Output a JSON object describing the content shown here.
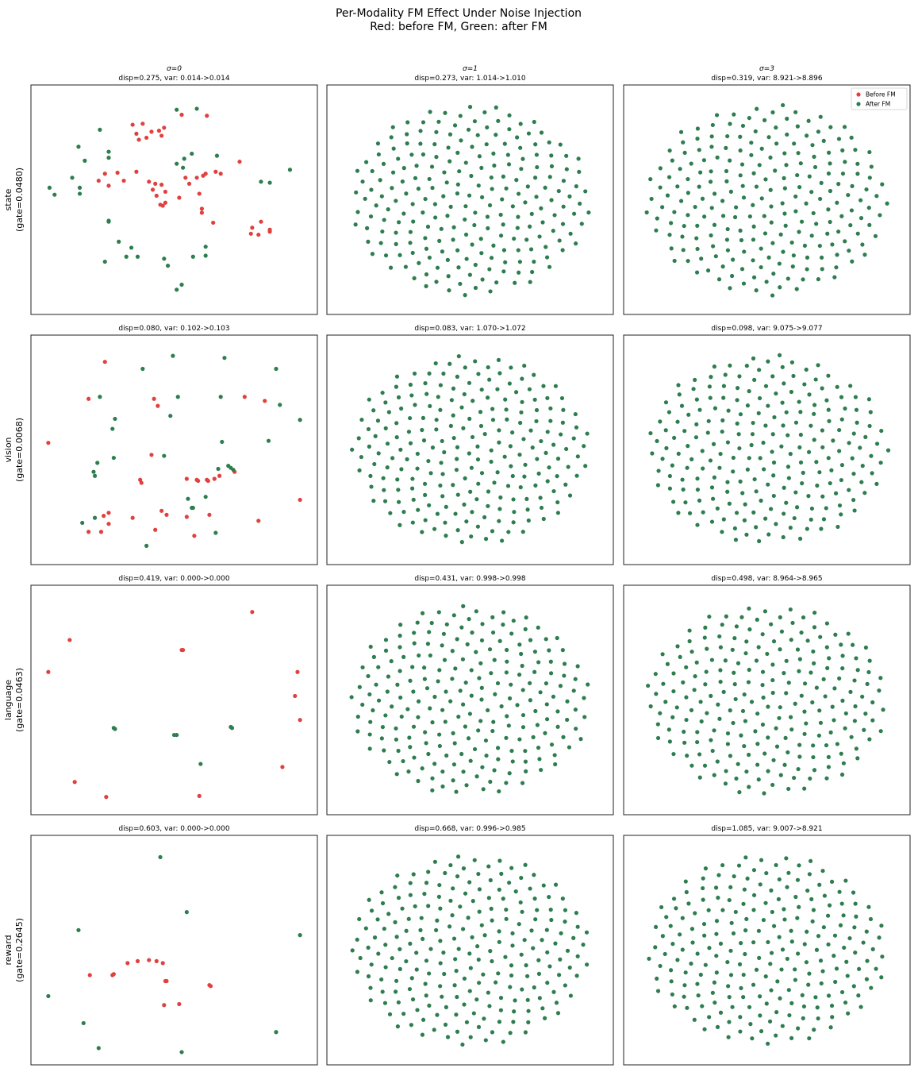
{
  "figure": {
    "title_line1": "Per-Modality FM Effect Under Noise Injection",
    "title_line2": "Red: before FM, Green: after FM"
  },
  "colors": {
    "before": "#e0413e",
    "after": "#2e7d4f",
    "frame": "#222222"
  },
  "legend": {
    "position": "upper-right of top-right panel",
    "before_label": "Before FM",
    "after_label": "After FM"
  },
  "columns": [
    {
      "label": "σ=0"
    },
    {
      "label": "σ=1"
    },
    {
      "label": "σ=3"
    }
  ],
  "rows": [
    {
      "name": "state",
      "gate": "(gate=0.0480)"
    },
    {
      "name": "vision",
      "gate": "(gate=0.0068)"
    },
    {
      "name": "language",
      "gate": "(gate=0.0463)"
    },
    {
      "name": "reward",
      "gate": "(gate=0.2645)"
    }
  ],
  "chart_data": [
    {
      "type": "scatter",
      "row": 0,
      "col": 0,
      "xlim": [
        -1.1,
        1.1
      ],
      "ylim": [
        -1.1,
        1.1
      ],
      "subtitle": "σ=0",
      "title": "disp=0.275, var: 0.014->0.014",
      "before": [
        [
          -0.33,
          0.75
        ],
        [
          -0.25,
          0.76
        ],
        [
          -0.3,
          0.66
        ],
        [
          -0.18,
          0.68
        ],
        [
          -0.22,
          0.62
        ],
        [
          -0.12,
          0.69
        ],
        [
          -0.28,
          0.6
        ],
        [
          -0.1,
          0.64
        ],
        [
          -0.08,
          0.72
        ],
        [
          0.06,
          0.85
        ],
        [
          0.26,
          0.84
        ],
        [
          -0.3,
          0.28
        ],
        [
          -0.55,
          0.26
        ],
        [
          -0.45,
          0.27
        ],
        [
          -0.6,
          0.19
        ],
        [
          -0.52,
          0.14
        ],
        [
          -0.4,
          0.19
        ],
        [
          -0.2,
          0.18
        ],
        [
          -0.15,
          0.16
        ],
        [
          -0.17,
          0.1
        ],
        [
          -0.1,
          0.15
        ],
        [
          -0.07,
          0.08
        ],
        [
          0.04,
          0.02
        ],
        [
          0.12,
          0.16
        ],
        [
          0.2,
          0.06
        ],
        [
          0.18,
          0.22
        ],
        [
          0.25,
          0.26
        ],
        [
          0.33,
          0.28
        ],
        [
          0.37,
          0.26
        ],
        [
          0.09,
          0.22
        ],
        [
          -0.14,
          0.04
        ],
        [
          -0.11,
          -0.05
        ],
        [
          -0.07,
          -0.03
        ],
        [
          0.23,
          0.24
        ],
        [
          0.52,
          0.38
        ],
        [
          -0.09,
          -0.06
        ],
        [
          0.22,
          -0.09
        ],
        [
          0.22,
          -0.13
        ],
        [
          0.31,
          -0.23
        ],
        [
          0.62,
          -0.28
        ],
        [
          0.69,
          -0.22
        ],
        [
          0.76,
          -0.3
        ],
        [
          0.76,
          -0.32
        ],
        [
          0.61,
          -0.34
        ],
        [
          0.67,
          -0.35
        ]
      ],
      "after": [
        [
          0.02,
          0.9
        ],
        [
          0.18,
          0.91
        ],
        [
          -0.59,
          0.7
        ],
        [
          -0.76,
          0.53
        ],
        [
          -0.52,
          0.48
        ],
        [
          -0.71,
          0.39
        ],
        [
          -0.52,
          0.42
        ],
        [
          0.08,
          0.41
        ],
        [
          0.14,
          0.46
        ],
        [
          0.34,
          0.44
        ],
        [
          0.02,
          0.36
        ],
        [
          0.07,
          0.32
        ],
        [
          0.92,
          0.3
        ],
        [
          -0.81,
          0.22
        ],
        [
          -0.75,
          0.12
        ],
        [
          -0.99,
          0.12
        ],
        [
          -0.75,
          0.06
        ],
        [
          -0.95,
          0.05
        ],
        [
          0.69,
          0.18
        ],
        [
          0.76,
          0.17
        ],
        [
          -0.52,
          -0.22
        ],
        [
          -0.52,
          -0.21
        ],
        [
          -0.44,
          -0.42
        ],
        [
          -0.38,
          -0.57
        ],
        [
          -0.34,
          -0.48
        ],
        [
          -0.29,
          -0.57
        ],
        [
          -0.08,
          -0.59
        ],
        [
          -0.05,
          -0.66
        ],
        [
          0.15,
          -0.57
        ],
        [
          0.25,
          -0.56
        ],
        [
          -0.55,
          -0.62
        ],
        [
          0.06,
          -0.85
        ],
        [
          0.02,
          -0.9
        ],
        [
          0.25,
          -0.47
        ]
      ]
    },
    {
      "type": "scatter",
      "row": 0,
      "col": 1,
      "xlim": [
        -1.1,
        1.1
      ],
      "ylim": [
        -1.1,
        1.1
      ],
      "subtitle": "σ=1",
      "title": "disp=0.273, var: 1.014->1.010",
      "before": [],
      "after": [],
      "pattern": "hex-ellipse cloud"
    },
    {
      "type": "scatter",
      "row": 0,
      "col": 2,
      "xlim": [
        -1.1,
        1.1
      ],
      "ylim": [
        -1.1,
        1.1
      ],
      "subtitle": "σ=3",
      "title": "disp=0.319, var: 8.921->8.896",
      "before": [],
      "after": [],
      "pattern": "hex-ellipse cloud"
    },
    {
      "type": "scatter",
      "row": 1,
      "col": 0,
      "xlim": [
        -1.1,
        1.1
      ],
      "ylim": [
        -1.1,
        1.1
      ],
      "subtitle": "",
      "title": "disp=0.080, var: 0.102->0.103",
      "before": [
        [
          -0.55,
          0.88
        ],
        [
          -0.68,
          0.51
        ],
        [
          -0.16,
          0.51
        ],
        [
          -0.13,
          0.44
        ],
        [
          0.56,
          0.53
        ],
        [
          0.72,
          0.49
        ],
        [
          -1.0,
          0.07
        ],
        [
          0.48,
          -0.22
        ],
        [
          0.36,
          -0.26
        ],
        [
          0.32,
          -0.29
        ],
        [
          0.27,
          -0.31
        ],
        [
          0.26,
          -0.3
        ],
        [
          0.18,
          -0.3
        ],
        [
          0.19,
          -0.31
        ],
        [
          -0.27,
          -0.3
        ],
        [
          -0.26,
          -0.33
        ],
        [
          -0.52,
          -0.63
        ],
        [
          -0.56,
          -0.66
        ],
        [
          -0.52,
          -0.74
        ],
        [
          -0.58,
          -0.82
        ],
        [
          -0.68,
          -0.82
        ],
        [
          -0.33,
          -0.68
        ],
        [
          -0.1,
          -0.61
        ],
        [
          -0.06,
          -0.65
        ],
        [
          0.1,
          -0.67
        ],
        [
          -0.15,
          -0.8
        ],
        [
          0.16,
          -0.86
        ],
        [
          0.28,
          -0.65
        ],
        [
          0.67,
          -0.71
        ],
        [
          1.0,
          -0.5
        ],
        [
          -0.18,
          -0.05
        ],
        [
          0.1,
          -0.29
        ]
      ],
      "after": [
        [
          -0.01,
          0.94
        ],
        [
          0.4,
          0.92
        ],
        [
          0.81,
          0.81
        ],
        [
          -0.25,
          0.81
        ],
        [
          -0.59,
          0.53
        ],
        [
          -0.47,
          0.31
        ],
        [
          -0.49,
          0.21
        ],
        [
          0.03,
          0.53
        ],
        [
          -0.03,
          0.34
        ],
        [
          0.37,
          0.53
        ],
        [
          0.84,
          0.45
        ],
        [
          1.0,
          0.3
        ],
        [
          0.75,
          0.09
        ],
        [
          0.38,
          0.08
        ],
        [
          -0.63,
          -0.26
        ],
        [
          -0.64,
          -0.22
        ],
        [
          -0.61,
          -0.13
        ],
        [
          -0.08,
          -0.06
        ],
        [
          0.43,
          -0.16
        ],
        [
          0.47,
          -0.2
        ],
        [
          0.35,
          -0.19
        ],
        [
          0.11,
          -0.49
        ],
        [
          0.25,
          -0.47
        ],
        [
          -0.63,
          -0.68
        ],
        [
          -0.73,
          -0.73
        ],
        [
          -0.22,
          -0.96
        ],
        [
          0.33,
          -0.83
        ],
        [
          0.14,
          -0.58
        ],
        [
          -0.48,
          -0.08
        ],
        [
          0.45,
          -0.18
        ],
        [
          0.15,
          -0.58
        ]
      ]
    },
    {
      "type": "scatter",
      "row": 1,
      "col": 1,
      "xlim": [
        -1.1,
        1.1
      ],
      "ylim": [
        -1.1,
        1.1
      ],
      "subtitle": "",
      "title": "disp=0.083, var: 1.070->1.072",
      "before": [],
      "after": [],
      "pattern": "tilted hex cloud"
    },
    {
      "type": "scatter",
      "row": 1,
      "col": 2,
      "xlim": [
        -1.1,
        1.1
      ],
      "ylim": [
        -1.1,
        1.1
      ],
      "subtitle": "",
      "title": "disp=0.098, var: 9.075->9.077",
      "before": [],
      "after": [],
      "pattern": "hex-ellipse cloud"
    },
    {
      "type": "scatter",
      "row": 2,
      "col": 0,
      "xlim": [
        -1.1,
        1.1
      ],
      "ylim": [
        -1.1,
        1.1
      ],
      "subtitle": "",
      "title": "disp=0.419, var: 0.000->0.000",
      "before": [
        [
          0.62,
          0.88
        ],
        [
          -0.83,
          0.6
        ],
        [
          0.06,
          0.5
        ],
        [
          0.07,
          0.5
        ],
        [
          -1.0,
          0.28
        ],
        [
          0.98,
          0.28
        ],
        [
          0.96,
          0.04
        ],
        [
          1.0,
          -0.2
        ],
        [
          0.86,
          -0.67
        ],
        [
          -0.79,
          -0.82
        ],
        [
          -0.54,
          -0.97
        ],
        [
          0.2,
          -0.96
        ]
      ],
      "after": [
        [
          -0.48,
          -0.28
        ],
        [
          -0.47,
          -0.29
        ],
        [
          0.0,
          -0.35
        ],
        [
          0.02,
          -0.35
        ],
        [
          0.45,
          -0.27
        ],
        [
          0.46,
          -0.28
        ],
        [
          0.21,
          -0.64
        ]
      ]
    },
    {
      "type": "scatter",
      "row": 2,
      "col": 1,
      "xlim": [
        -1.1,
        1.1
      ],
      "ylim": [
        -1.1,
        1.1
      ],
      "subtitle": "",
      "title": "disp=0.431, var: 0.998->0.998",
      "before": [],
      "after": [],
      "pattern": "hex-ellipse cloud"
    },
    {
      "type": "scatter",
      "row": 2,
      "col": 2,
      "xlim": [
        -1.1,
        1.1
      ],
      "ylim": [
        -1.1,
        1.1
      ],
      "subtitle": "",
      "title": "disp=0.498, var: 8.964->8.965",
      "before": [],
      "after": [],
      "pattern": "hex-ellipse cloud"
    },
    {
      "type": "scatter",
      "row": 3,
      "col": 0,
      "xlim": [
        -1.1,
        1.1
      ],
      "ylim": [
        -1.1,
        1.1
      ],
      "subtitle": "",
      "title": "disp=0.603, var: 0.000->0.000",
      "before": [
        [
          -0.37,
          -0.13
        ],
        [
          -0.29,
          -0.11
        ],
        [
          -0.2,
          -0.1
        ],
        [
          -0.14,
          -0.11
        ],
        [
          -0.09,
          -0.13
        ],
        [
          -0.49,
          -0.25
        ],
        [
          -0.48,
          -0.24
        ],
        [
          -0.06,
          -0.31
        ],
        [
          -0.07,
          -0.31
        ],
        [
          0.28,
          -0.35
        ],
        [
          0.29,
          -0.36
        ],
        [
          -0.08,
          -0.55
        ],
        [
          0.04,
          -0.54
        ],
        [
          -0.67,
          -0.25
        ]
      ],
      "after": [
        [
          -0.11,
          0.93
        ],
        [
          0.1,
          0.38
        ],
        [
          -0.76,
          0.2
        ],
        [
          -1.0,
          -0.46
        ],
        [
          -0.72,
          -0.73
        ],
        [
          -0.6,
          -0.98
        ],
        [
          0.06,
          -1.02
        ],
        [
          0.81,
          -0.82
        ],
        [
          1.0,
          0.15
        ]
      ]
    },
    {
      "type": "scatter",
      "row": 3,
      "col": 1,
      "xlim": [
        -1.1,
        1.1
      ],
      "ylim": [
        -1.1,
        1.1
      ],
      "subtitle": "",
      "title": "disp=0.668, var: 0.996->0.985",
      "before": [],
      "after": [],
      "pattern": "hex-ellipse cloud"
    },
    {
      "type": "scatter",
      "row": 3,
      "col": 2,
      "xlim": [
        -1.1,
        1.1
      ],
      "ylim": [
        -1.1,
        1.1
      ],
      "subtitle": "",
      "title": "disp=1.085, var: 9.007->8.921",
      "before": [],
      "after": [],
      "pattern": "hex-ellipse cloud"
    }
  ]
}
